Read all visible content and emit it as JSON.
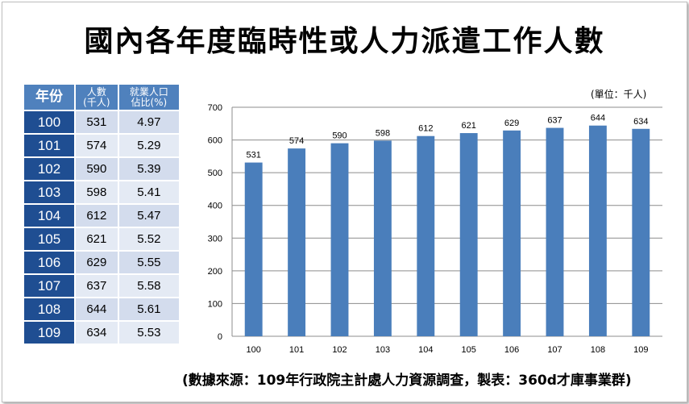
{
  "title": "國內各年度臨時性或人力派遣工作人數",
  "table": {
    "headers": {
      "year": "年份",
      "people_line1": "人數",
      "people_line2": "(千人)",
      "ratio_line1": "就業人口",
      "ratio_line2": "佔比(%)"
    },
    "rows": [
      {
        "year": "100",
        "people": "531",
        "ratio": "4.97"
      },
      {
        "year": "101",
        "people": "574",
        "ratio": "5.29"
      },
      {
        "year": "102",
        "people": "590",
        "ratio": "5.39"
      },
      {
        "year": "103",
        "people": "598",
        "ratio": "5.41"
      },
      {
        "year": "104",
        "people": "612",
        "ratio": "5.47"
      },
      {
        "year": "105",
        "people": "621",
        "ratio": "5.52"
      },
      {
        "year": "106",
        "people": "629",
        "ratio": "5.55"
      },
      {
        "year": "107",
        "people": "637",
        "ratio": "5.58"
      },
      {
        "year": "108",
        "people": "644",
        "ratio": "5.61"
      },
      {
        "year": "109",
        "people": "634",
        "ratio": "5.53"
      }
    ]
  },
  "unit_label": "(單位：千人)",
  "source": "(數據來源：109年行政院主計處人力資源調查，製表：360d才庫事業群)",
  "chart_data": {
    "type": "bar",
    "title": "國內各年度臨時性或人力派遣工作人數",
    "xlabel": "",
    "ylabel": "",
    "categories": [
      "100",
      "101",
      "102",
      "103",
      "104",
      "105",
      "106",
      "107",
      "108",
      "109"
    ],
    "values": [
      531,
      574,
      590,
      598,
      612,
      621,
      629,
      637,
      644,
      634
    ],
    "ylim": [
      0,
      700
    ],
    "yticks": [
      0,
      100,
      200,
      300,
      400,
      500,
      600,
      700
    ],
    "grid": true,
    "legend": "none",
    "bar_color": "#4a7ebb",
    "data_labels": true
  }
}
